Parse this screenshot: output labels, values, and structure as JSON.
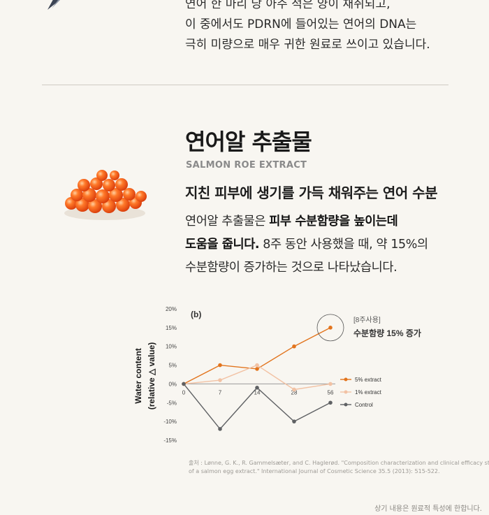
{
  "intro": {
    "lines": [
      "연어 한 마리 당 아주 적은 양이 채취되고,",
      "이 중에서도 PDRN에 들어있는 연어의 DNA는",
      "극히 미량으로 매우 귀한 원료로 쓰이고 있습니다."
    ]
  },
  "section": {
    "title": "연어알 추출물",
    "subtitle": "SALMON ROE EXTRACT",
    "headline": "지친 피부에 생기를 가득 채워주는 연어 수분",
    "desc": {
      "l1a": "연어알 추출물은 ",
      "l1b": "피부 수분함량을 높이는데",
      "l2a": "도움을 줍니다.",
      "l2b": " 8주 동안 사용했을 때, 약 15%의",
      "l3": "수분함량이 증가하는 것으로 나타났습니다."
    }
  },
  "chart_data": {
    "type": "line",
    "panel_label": "(b)",
    "ylabel_line1": "Water content",
    "ylabel_line2": "(relative △ value)",
    "x": [
      0,
      7,
      14,
      28,
      56
    ],
    "x_tick_labels": [
      "0",
      "7",
      "14",
      "28",
      "56"
    ],
    "yticks": [
      20,
      15,
      10,
      5,
      0,
      -5,
      -10,
      -15
    ],
    "ytick_labels": [
      "20%",
      "15%",
      "10%",
      "5%",
      "0%",
      "-5%",
      "-10%",
      "-15%"
    ],
    "ylim": [
      -15,
      20
    ],
    "series": [
      {
        "name": "5% extract",
        "color": "#e2741d",
        "values": [
          0,
          5,
          4,
          10,
          15
        ]
      },
      {
        "name": "1% extract",
        "color": "#f2c2a4",
        "values": [
          0,
          1,
          5,
          -1.5,
          0
        ]
      },
      {
        "name": "Control",
        "color": "#5f6164",
        "values": [
          0,
          -12,
          -1,
          -10,
          -5
        ]
      }
    ],
    "annotation": {
      "line1": "[8주사용]",
      "line2": "수분함량 15% 증가"
    }
  },
  "source": {
    "line1": "출처 : Lønne, G. K., R. Gammelsæter, and C. Haglerød. \"Composition characterization and clinical efficacy study",
    "line2": "of a salmon egg  extract.\" International Journal of Cosmetic Science 35.5 (2013): 515-522."
  },
  "footnote": "상기 내용은 원료적 특성에 한합니다."
}
